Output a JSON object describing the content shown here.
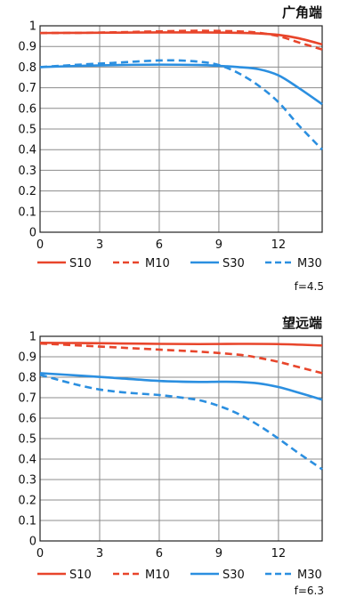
{
  "chart_data": [
    {
      "type": "line",
      "title": "广角端",
      "aperture_note": "f=4.5",
      "xlabel": "",
      "ylabel": "",
      "xlim": [
        0,
        14.2
      ],
      "ylim": [
        0,
        1
      ],
      "x_ticks": [
        "0",
        "3",
        "6",
        "9",
        "12"
      ],
      "y_ticks": [
        "0",
        "0.1",
        "0.2",
        "0.3",
        "0.4",
        "0.5",
        "0.6",
        "0.7",
        "0.8",
        "0.9",
        "1"
      ],
      "grid": true,
      "legend_position": "bottom",
      "series": [
        {
          "name": "S10",
          "color": "#e8452b",
          "dash": false,
          "x": [
            0,
            2,
            4,
            6,
            8,
            10,
            11,
            12,
            13,
            14.2
          ],
          "y": [
            0.965,
            0.966,
            0.967,
            0.968,
            0.968,
            0.966,
            0.963,
            0.956,
            0.94,
            0.91
          ]
        },
        {
          "name": "M10",
          "color": "#e8452b",
          "dash": true,
          "x": [
            0,
            2,
            4,
            6,
            8,
            10,
            11,
            12,
            13,
            14.2
          ],
          "y": [
            0.965,
            0.966,
            0.969,
            0.973,
            0.976,
            0.973,
            0.966,
            0.95,
            0.92,
            0.885
          ]
        },
        {
          "name": "S30",
          "color": "#2b8fe0",
          "dash": false,
          "x": [
            0,
            2,
            4,
            6,
            8,
            9,
            10,
            11,
            12,
            13,
            14.2
          ],
          "y": [
            0.8,
            0.806,
            0.81,
            0.812,
            0.81,
            0.806,
            0.8,
            0.79,
            0.76,
            0.7,
            0.62
          ]
        },
        {
          "name": "M30",
          "color": "#2b8fe0",
          "dash": true,
          "x": [
            0,
            2,
            4,
            5,
            6,
            7,
            8,
            9,
            10,
            11,
            12,
            13,
            14.2
          ],
          "y": [
            0.8,
            0.812,
            0.822,
            0.828,
            0.832,
            0.832,
            0.826,
            0.81,
            0.77,
            0.71,
            0.63,
            0.52,
            0.4
          ]
        }
      ]
    },
    {
      "type": "line",
      "title": "望远端",
      "aperture_note": "f=6.3",
      "xlabel": "",
      "ylabel": "",
      "xlim": [
        0,
        14.2
      ],
      "ylim": [
        0,
        1
      ],
      "x_ticks": [
        "0",
        "3",
        "6",
        "9",
        "12"
      ],
      "y_ticks": [
        "0",
        "0.1",
        "0.2",
        "0.3",
        "0.4",
        "0.5",
        "0.6",
        "0.7",
        "0.8",
        "0.9",
        "1"
      ],
      "grid": true,
      "legend_position": "bottom",
      "series": [
        {
          "name": "S10",
          "color": "#e8452b",
          "dash": false,
          "x": [
            0,
            2,
            4,
            6,
            8,
            10,
            12,
            14.2
          ],
          "y": [
            0.968,
            0.967,
            0.965,
            0.963,
            0.962,
            0.963,
            0.962,
            0.955
          ]
        },
        {
          "name": "M10",
          "color": "#e8452b",
          "dash": true,
          "x": [
            0,
            2,
            4,
            6,
            8,
            10,
            11,
            12,
            13,
            14.2
          ],
          "y": [
            0.965,
            0.955,
            0.945,
            0.935,
            0.925,
            0.91,
            0.895,
            0.875,
            0.85,
            0.82
          ]
        },
        {
          "name": "S30",
          "color": "#2b8fe0",
          "dash": false,
          "x": [
            0,
            2,
            4,
            6,
            8,
            9,
            10,
            11,
            12,
            13,
            14.2
          ],
          "y": [
            0.82,
            0.808,
            0.795,
            0.782,
            0.777,
            0.778,
            0.777,
            0.77,
            0.752,
            0.725,
            0.69
          ]
        },
        {
          "name": "M30",
          "color": "#2b8fe0",
          "dash": true,
          "x": [
            0,
            1,
            2,
            3,
            4,
            5,
            6,
            7,
            8,
            9,
            10,
            11,
            12,
            13,
            14.2
          ],
          "y": [
            0.812,
            0.785,
            0.76,
            0.74,
            0.728,
            0.72,
            0.713,
            0.702,
            0.688,
            0.66,
            0.62,
            0.565,
            0.5,
            0.43,
            0.35
          ]
        }
      ]
    }
  ]
}
